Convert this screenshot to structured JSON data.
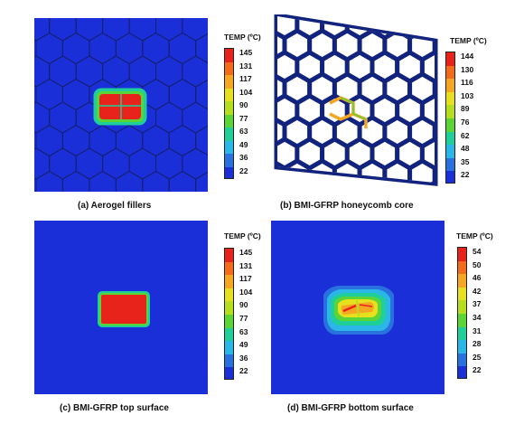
{
  "panels": [
    {
      "id": "a",
      "caption": "(a) Aerogel fillers",
      "legend_title": "TEMP (ºC)",
      "ticks": [
        "145",
        "131",
        "117",
        "104",
        "90",
        "77",
        "63",
        "49",
        "36",
        "22"
      ]
    },
    {
      "id": "b",
      "caption": "(b) BMI-GFRP honeycomb core",
      "legend_title": "TEMP (ºC)",
      "ticks": [
        "144",
        "130",
        "116",
        "103",
        "89",
        "76",
        "62",
        "48",
        "35",
        "22"
      ]
    },
    {
      "id": "c",
      "caption": "(c) BMI-GFRP top surface",
      "legend_title": "TEMP (ºC)",
      "ticks": [
        "145",
        "131",
        "117",
        "104",
        "90",
        "77",
        "63",
        "49",
        "36",
        "22"
      ]
    },
    {
      "id": "d",
      "caption": "(d) BMI-GFRP bottom surface",
      "legend_title": "TEMP (ºC)",
      "ticks": [
        "54",
        "50",
        "46",
        "42",
        "37",
        "34",
        "31",
        "28",
        "25",
        "22"
      ]
    }
  ],
  "colors": {
    "scale": [
      "#e8231b",
      "#f26c1c",
      "#f5a623",
      "#e6e01e",
      "#b5df1e",
      "#5ad437",
      "#1fcf9a",
      "#2ab6e6",
      "#2a71e0",
      "#1a2fd8"
    ],
    "field": "#1a2fd8",
    "core": "#12237e",
    "hot": "#e8231b"
  }
}
